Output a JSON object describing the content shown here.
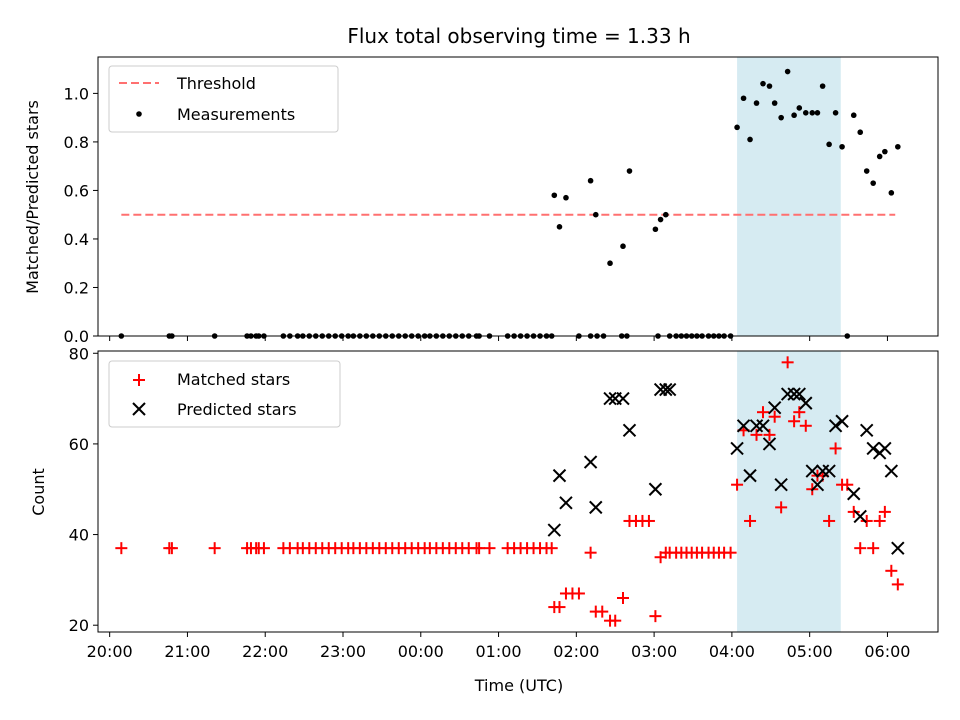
{
  "chart_data": [
    {
      "type": "scatter",
      "title": "Flux total observing time = 1.33 h",
      "xlabel": "",
      "ylabel": "Matched/Predicted stars",
      "xlim": [
        "19:51",
        "06:39"
      ],
      "ylim": [
        0,
        1.15
      ],
      "yticks": [
        "0.0",
        "0.2",
        "0.4",
        "0.6",
        "0.8",
        "1.0"
      ],
      "shaded_region": [
        "04:04",
        "05:24"
      ],
      "legend": {
        "position": "top-left",
        "entries": [
          "Threshold",
          "Measurements"
        ]
      },
      "threshold": {
        "name": "Threshold",
        "value": 0.5,
        "x_start": "20:09",
        "x_end": "06:06",
        "color": "#ff7070"
      },
      "series": [
        {
          "name": "Measurements",
          "color": "#000000",
          "points": [
            [
              "20:09",
              0
            ],
            [
              "20:46",
              0
            ],
            [
              "20:48",
              0
            ],
            [
              "21:21",
              0
            ],
            [
              "21:46",
              0
            ],
            [
              "21:49",
              0
            ],
            [
              "21:53",
              0
            ],
            [
              "21:55",
              0
            ],
            [
              "21:59",
              0
            ],
            [
              "22:14",
              0
            ],
            [
              "22:19",
              0
            ],
            [
              "22:25",
              0
            ],
            [
              "22:29",
              0
            ],
            [
              "22:34",
              0
            ],
            [
              "22:39",
              0
            ],
            [
              "22:44",
              0
            ],
            [
              "22:49",
              0
            ],
            [
              "22:54",
              0
            ],
            [
              "22:59",
              0
            ],
            [
              "23:04",
              0
            ],
            [
              "23:08",
              0
            ],
            [
              "23:13",
              0
            ],
            [
              "23:18",
              0
            ],
            [
              "23:23",
              0
            ],
            [
              "23:28",
              0
            ],
            [
              "23:33",
              0
            ],
            [
              "23:38",
              0
            ],
            [
              "23:43",
              0
            ],
            [
              "23:48",
              0
            ],
            [
              "23:53",
              0
            ],
            [
              "23:58",
              0
            ],
            [
              "00:03",
              0
            ],
            [
              "00:07",
              0
            ],
            [
              "00:12",
              0
            ],
            [
              "00:17",
              0
            ],
            [
              "00:22",
              0
            ],
            [
              "00:27",
              0
            ],
            [
              "00:32",
              0
            ],
            [
              "00:37",
              0
            ],
            [
              "00:43",
              0
            ],
            [
              "00:45",
              0
            ],
            [
              "00:53",
              0
            ],
            [
              "01:07",
              0
            ],
            [
              "01:12",
              0
            ],
            [
              "01:17",
              0
            ],
            [
              "01:22",
              0
            ],
            [
              "01:27",
              0
            ],
            [
              "01:32",
              0
            ],
            [
              "01:37",
              0
            ],
            [
              "01:41",
              0
            ],
            [
              "02:02",
              0
            ],
            [
              "02:11",
              0
            ],
            [
              "02:16",
              0
            ],
            [
              "02:21",
              0
            ],
            [
              "02:35",
              0
            ],
            [
              "02:39",
              0
            ],
            [
              "03:03",
              0
            ],
            [
              "03:12",
              0
            ],
            [
              "03:17",
              0
            ],
            [
              "03:21",
              0
            ],
            [
              "03:25",
              0
            ],
            [
              "03:29",
              0
            ],
            [
              "03:33",
              0
            ],
            [
              "03:37",
              0
            ],
            [
              "03:42",
              0
            ],
            [
              "03:46",
              0
            ],
            [
              "03:50",
              0
            ],
            [
              "03:54",
              0
            ],
            [
              "03:59",
              0
            ],
            [
              "05:29",
              0
            ],
            [
              "01:43",
              0.58
            ],
            [
              "01:47",
              0.45
            ],
            [
              "01:52",
              0.57
            ],
            [
              "02:11",
              0.64
            ],
            [
              "02:15",
              0.5
            ],
            [
              "02:26",
              0.3
            ],
            [
              "02:36",
              0.37
            ],
            [
              "02:41",
              0.68
            ],
            [
              "03:01",
              0.44
            ],
            [
              "03:05",
              0.48
            ],
            [
              "03:09",
              0.5
            ],
            [
              "04:04",
              0.86
            ],
            [
              "04:09",
              0.98
            ],
            [
              "04:14",
              0.81
            ],
            [
              "04:19",
              0.96
            ],
            [
              "04:24",
              1.04
            ],
            [
              "04:29",
              1.03
            ],
            [
              "04:33",
              0.96
            ],
            [
              "04:38",
              0.9
            ],
            [
              "04:43",
              1.09
            ],
            [
              "04:48",
              0.91
            ],
            [
              "04:52",
              0.94
            ],
            [
              "04:57",
              0.92
            ],
            [
              "05:02",
              0.92
            ],
            [
              "05:06",
              0.92
            ],
            [
              "05:10",
              1.03
            ],
            [
              "05:15",
              0.79
            ],
            [
              "05:20",
              0.92
            ],
            [
              "05:25",
              0.78
            ],
            [
              "05:34",
              0.91
            ],
            [
              "05:39",
              0.84
            ],
            [
              "05:44",
              0.68
            ],
            [
              "05:49",
              0.63
            ],
            [
              "05:54",
              0.74
            ],
            [
              "05:58",
              0.76
            ],
            [
              "06:03",
              0.59
            ],
            [
              "06:08",
              0.78
            ]
          ]
        }
      ]
    },
    {
      "type": "scatter",
      "title": "",
      "xlabel": "Time (UTC)",
      "ylabel": "Count",
      "xlim": [
        "19:51",
        "06:39"
      ],
      "ylim": [
        18.5,
        80.5
      ],
      "yticks": [
        "20",
        "40",
        "60",
        "80"
      ],
      "xticks": [
        "20:00",
        "21:00",
        "22:00",
        "23:00",
        "00:00",
        "01:00",
        "02:00",
        "03:00",
        "04:00",
        "05:00",
        "06:00"
      ],
      "shaded_region": [
        "04:04",
        "05:24"
      ],
      "legend": {
        "position": "top-left",
        "entries": [
          "Matched stars",
          "Predicted stars"
        ]
      },
      "series": [
        {
          "name": "Matched stars",
          "marker": "plus",
          "color": "#ff0000",
          "points": [
            [
              "20:09",
              37
            ],
            [
              "20:46",
              37
            ],
            [
              "20:48",
              37
            ],
            [
              "21:21",
              37
            ],
            [
              "21:46",
              37
            ],
            [
              "21:49",
              37
            ],
            [
              "21:53",
              37
            ],
            [
              "21:55",
              37
            ],
            [
              "21:59",
              37
            ],
            [
              "22:14",
              37
            ],
            [
              "22:19",
              37
            ],
            [
              "22:25",
              37
            ],
            [
              "22:29",
              37
            ],
            [
              "22:34",
              37
            ],
            [
              "22:39",
              37
            ],
            [
              "22:44",
              37
            ],
            [
              "22:49",
              37
            ],
            [
              "22:54",
              37
            ],
            [
              "22:59",
              37
            ],
            [
              "23:04",
              37
            ],
            [
              "23:08",
              37
            ],
            [
              "23:13",
              37
            ],
            [
              "23:18",
              37
            ],
            [
              "23:23",
              37
            ],
            [
              "23:28",
              37
            ],
            [
              "23:33",
              37
            ],
            [
              "23:38",
              37
            ],
            [
              "23:43",
              37
            ],
            [
              "23:48",
              37
            ],
            [
              "23:53",
              37
            ],
            [
              "23:58",
              37
            ],
            [
              "00:03",
              37
            ],
            [
              "00:07",
              37
            ],
            [
              "00:12",
              37
            ],
            [
              "00:17",
              37
            ],
            [
              "00:22",
              37
            ],
            [
              "00:27",
              37
            ],
            [
              "00:32",
              37
            ],
            [
              "00:37",
              37
            ],
            [
              "00:43",
              37
            ],
            [
              "00:45",
              37
            ],
            [
              "00:53",
              37
            ],
            [
              "01:07",
              37
            ],
            [
              "01:12",
              37
            ],
            [
              "01:17",
              37
            ],
            [
              "01:22",
              37
            ],
            [
              "01:27",
              37
            ],
            [
              "01:32",
              37
            ],
            [
              "01:37",
              37
            ],
            [
              "01:41",
              37
            ],
            [
              "01:43",
              24
            ],
            [
              "01:47",
              24
            ],
            [
              "01:52",
              27
            ],
            [
              "01:57",
              27
            ],
            [
              "02:02",
              27
            ],
            [
              "02:11",
              36
            ],
            [
              "02:15",
              23
            ],
            [
              "02:20",
              23
            ],
            [
              "02:26",
              21
            ],
            [
              "02:30",
              21
            ],
            [
              "02:36",
              26
            ],
            [
              "02:41",
              43
            ],
            [
              "02:46",
              43
            ],
            [
              "02:51",
              43
            ],
            [
              "02:56",
              43
            ],
            [
              "03:01",
              22
            ],
            [
              "03:05",
              35
            ],
            [
              "03:09",
              36
            ],
            [
              "03:12",
              36
            ],
            [
              "03:17",
              36
            ],
            [
              "03:21",
              36
            ],
            [
              "03:25",
              36
            ],
            [
              "03:29",
              36
            ],
            [
              "03:33",
              36
            ],
            [
              "03:37",
              36
            ],
            [
              "03:42",
              36
            ],
            [
              "03:46",
              36
            ],
            [
              "03:50",
              36
            ],
            [
              "03:54",
              36
            ],
            [
              "03:59",
              36
            ],
            [
              "04:04",
              51
            ],
            [
              "04:09",
              63
            ],
            [
              "04:14",
              43
            ],
            [
              "04:19",
              62
            ],
            [
              "04:24",
              67
            ],
            [
              "04:29",
              62
            ],
            [
              "04:33",
              66
            ],
            [
              "04:38",
              46
            ],
            [
              "04:43",
              78
            ],
            [
              "04:48",
              65
            ],
            [
              "04:52",
              67
            ],
            [
              "04:57",
              64
            ],
            [
              "05:02",
              50
            ],
            [
              "05:06",
              53
            ],
            [
              "05:10",
              53
            ],
            [
              "05:15",
              43
            ],
            [
              "05:20",
              59
            ],
            [
              "05:25",
              51
            ],
            [
              "05:29",
              51
            ],
            [
              "05:34",
              45
            ],
            [
              "05:39",
              37
            ],
            [
              "05:44",
              43
            ],
            [
              "05:49",
              37
            ],
            [
              "05:54",
              43
            ],
            [
              "05:58",
              45
            ],
            [
              "06:03",
              32
            ],
            [
              "06:08",
              29
            ]
          ]
        },
        {
          "name": "Predicted stars",
          "marker": "x",
          "color": "#000000",
          "points": [
            [
              "01:43",
              41
            ],
            [
              "01:47",
              53
            ],
            [
              "01:52",
              47
            ],
            [
              "02:11",
              56
            ],
            [
              "02:15",
              46
            ],
            [
              "02:26",
              70
            ],
            [
              "02:30",
              70
            ],
            [
              "02:36",
              70
            ],
            [
              "02:41",
              63
            ],
            [
              "03:01",
              50
            ],
            [
              "03:05",
              72
            ],
            [
              "03:09",
              72
            ],
            [
              "03:12",
              72
            ],
            [
              "04:04",
              59
            ],
            [
              "04:09",
              64
            ],
            [
              "04:14",
              53
            ],
            [
              "04:19",
              64
            ],
            [
              "04:24",
              64
            ],
            [
              "04:29",
              60
            ],
            [
              "04:33",
              68
            ],
            [
              "04:38",
              51
            ],
            [
              "04:43",
              71
            ],
            [
              "04:48",
              71
            ],
            [
              "04:52",
              71
            ],
            [
              "04:57",
              69
            ],
            [
              "05:02",
              54
            ],
            [
              "05:06",
              51
            ],
            [
              "05:10",
              54
            ],
            [
              "05:15",
              54
            ],
            [
              "05:20",
              64
            ],
            [
              "05:25",
              65
            ],
            [
              "05:34",
              49
            ],
            [
              "05:39",
              44
            ],
            [
              "05:44",
              63
            ],
            [
              "05:49",
              59
            ],
            [
              "05:54",
              58
            ],
            [
              "05:58",
              59
            ],
            [
              "06:03",
              54
            ],
            [
              "06:08",
              37
            ]
          ]
        }
      ]
    }
  ],
  "colors": {
    "shade": "#add8e6",
    "threshold": "#ff7070",
    "measurements": "#000000",
    "matched": "#ff0000",
    "predicted": "#000000"
  }
}
